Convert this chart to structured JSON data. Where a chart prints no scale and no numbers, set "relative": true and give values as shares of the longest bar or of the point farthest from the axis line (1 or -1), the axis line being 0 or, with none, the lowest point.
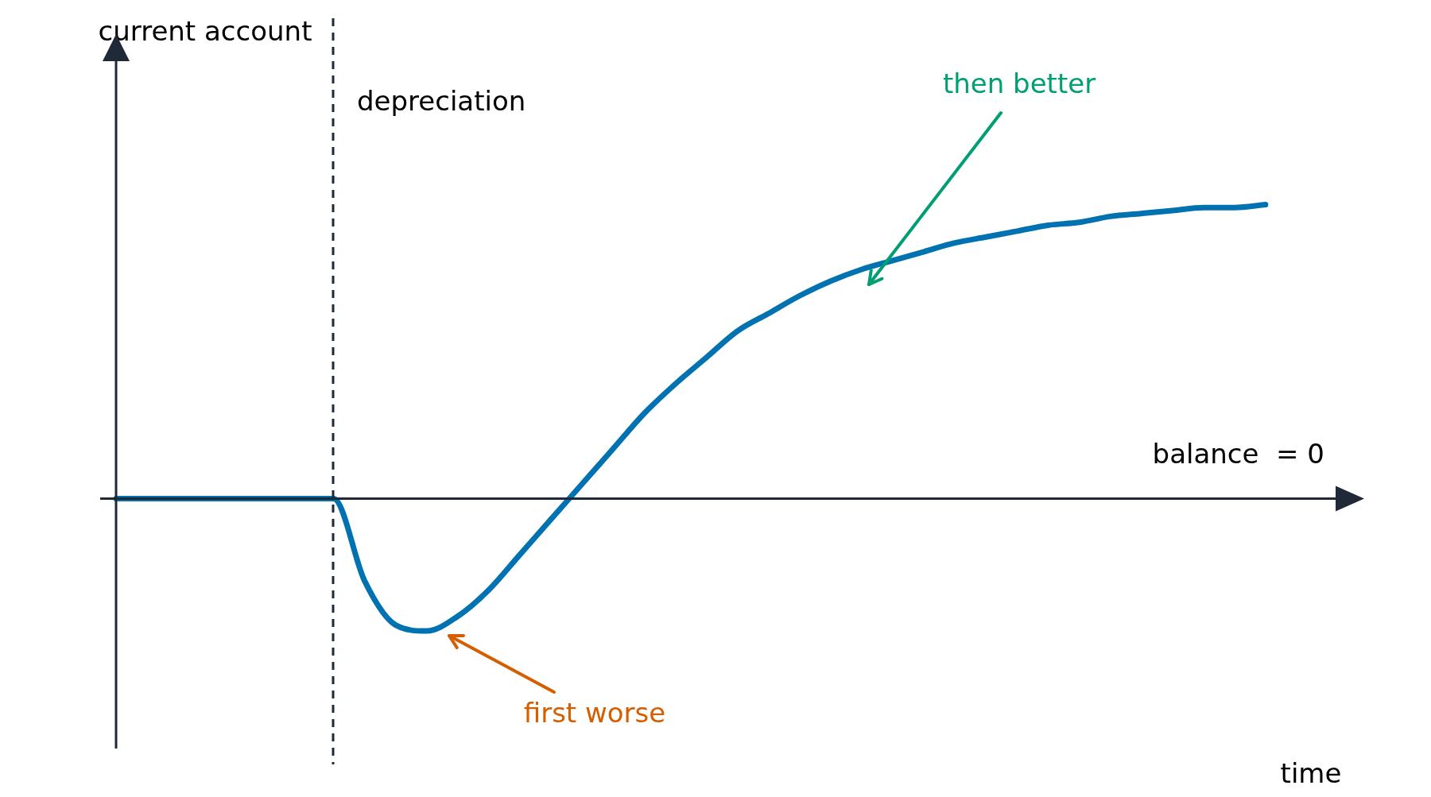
{
  "chart_data": {
    "type": "line",
    "relative": true,
    "xlabel": "time",
    "categories": [
      null,
      null,
      null,
      null,
      null,
      null,
      null,
      null,
      null,
      null,
      null,
      null,
      null,
      null,
      null,
      null,
      null,
      null,
      null,
      null,
      null,
      null,
      null,
      null,
      null,
      null,
      null,
      null,
      null,
      null,
      null,
      null,
      null,
      null,
      null,
      null,
      null,
      null
    ],
    "series": [
      {
        "color": "#0072b2",
        "values": [
          0,
          0,
          0,
          0,
          0,
          0,
          0,
          0,
          -0.28,
          -0.43,
          -0.45,
          -0.4,
          -0.31,
          -0.19,
          -0.07,
          0.05,
          0.17,
          0.29,
          0.39,
          0.48,
          0.57,
          0.63,
          0.69,
          0.74,
          0.78,
          0.81,
          0.84,
          0.87,
          0.89,
          0.91,
          0.93,
          0.94,
          0.96,
          0.97,
          0.98,
          0.99,
          0.99,
          1
        ]
      }
    ],
    "ref_lines": [
      {
        "axis": "y",
        "value": 0,
        "label": "balance  = 0"
      }
    ],
    "annotations": [
      "current account",
      "depreciation",
      "then better",
      "first worse"
    ],
    "marker": "none",
    "line_style": "solid",
    "legend": false
  }
}
